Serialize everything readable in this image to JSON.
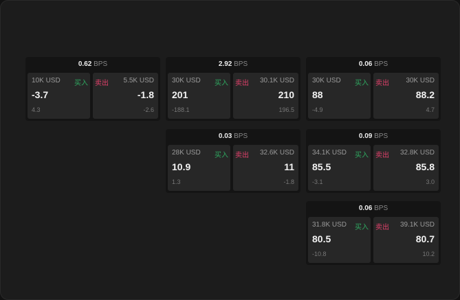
{
  "unit": "BPS",
  "buy_label": "买入",
  "sell_label": "卖出",
  "colors": {
    "buy": "#2fa860",
    "sell": "#e0406a"
  },
  "cards": [
    {
      "spread": "0.62",
      "buy": {
        "size": "10K USD",
        "price": "-3.7",
        "change": "4.3"
      },
      "sell": {
        "size": "5.5K USD",
        "price": "-1.8",
        "change": "-2.6"
      }
    },
    {
      "spread": "2.92",
      "buy": {
        "size": "30K USD",
        "price": "201",
        "change": "-188.1"
      },
      "sell": {
        "size": "30.1K USD",
        "price": "210",
        "change": "196.5"
      }
    },
    {
      "spread": "0.06",
      "buy": {
        "size": "30K USD",
        "price": "88",
        "change": "-4.9"
      },
      "sell": {
        "size": "30K USD",
        "price": "88.2",
        "change": "4.7"
      }
    },
    {
      "spread": "0.03",
      "buy": {
        "size": "28K USD",
        "price": "10.9",
        "change": "1.3"
      },
      "sell": {
        "size": "32.6K USD",
        "price": "11",
        "change": "-1.8"
      }
    },
    {
      "spread": "0.09",
      "buy": {
        "size": "34.1K USD",
        "price": "85.5",
        "change": "-3.1"
      },
      "sell": {
        "size": "32.8K USD",
        "price": "85.8",
        "change": "3.0"
      }
    },
    {
      "spread": "0.06",
      "buy": {
        "size": "31.8K USD",
        "price": "80.5",
        "change": "-10.8"
      },
      "sell": {
        "size": "39.1K USD",
        "price": "80.7",
        "change": "10.2"
      }
    }
  ]
}
